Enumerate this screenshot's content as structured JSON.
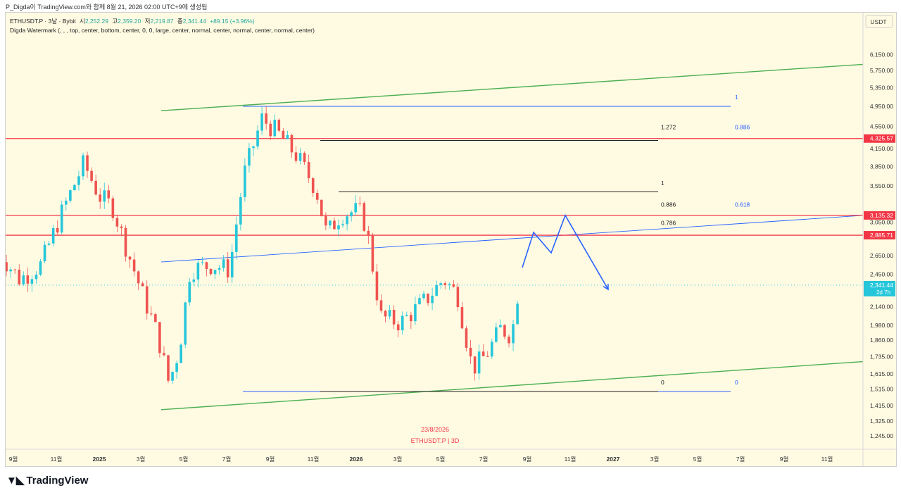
{
  "caption": "P_Digda이 TradingView.com와 함께 8월 21, 2026 02:00 UTC+9에 생성됨",
  "legend": {
    "symbol": "ETHUSDT.P · 3날 · Bybit",
    "open_label": "시",
    "open": "2,252.29",
    "high_label": "고",
    "high": "2,359.20",
    "low_label": "저",
    "low": "2,219.87",
    "close_label": "종",
    "close": "2,341.44",
    "change": "+89.15 (+3.96%)",
    "indicator": "Digda Watermark (, , , top, center, bottom, center, 0, 0, large, center, normal, center, normal, center, normal, center)"
  },
  "axis": {
    "currency": "USDT",
    "price_ticks": [
      "6,150.00",
      "5,750.00",
      "5,350.00",
      "4,950.00",
      "4,550.00",
      "4,150.00",
      "3,850.00",
      "3,550.00",
      "3,050.00",
      "2,650.00",
      "2,450.00",
      "2,140.00",
      "1,980.00",
      "1,860.00",
      "1,735.00",
      "1,615.00",
      "1,515.00",
      "1,415.00",
      "1,325.00",
      "1,245.00"
    ],
    "time_ticks": [
      "9월",
      "11월",
      "2025",
      "3월",
      "5월",
      "7월",
      "9월",
      "11월",
      "2026",
      "3월",
      "5월",
      "7월",
      "9월",
      "11월",
      "2027",
      "3월",
      "5월",
      "7월",
      "9월",
      "11월"
    ]
  },
  "price_badges": [
    {
      "value": "4,325.57",
      "color": "#f23645"
    },
    {
      "value": "3,135.32",
      "color": "#f23645"
    },
    {
      "value": "2,885.71",
      "color": "#f23645"
    },
    {
      "value": "2,341.44",
      "sub": "2d 7h",
      "color": "#26c6da"
    }
  ],
  "fib_labels": {
    "black": [
      {
        "ratio": "1.272",
        "price": 4325.57
      },
      {
        "ratio": "1",
        "price": 3460
      },
      {
        "ratio": "0.886",
        "price": 3180
      },
      {
        "ratio": "0.786",
        "price": 2950
      },
      {
        "ratio": "0",
        "price": 1500
      }
    ],
    "blue": [
      {
        "ratio": "1",
        "price": 4950
      },
      {
        "ratio": "0.886",
        "price": 4325.57
      },
      {
        "ratio": "0.618",
        "price": 3180
      },
      {
        "ratio": "0",
        "price": 1500
      }
    ]
  },
  "watermark": {
    "date": "23/8/2026",
    "symbol": "ETHUSDT.P | 3D"
  },
  "colors": {
    "background": "#fffbe3",
    "up": "#26c6da",
    "down": "#ef5350",
    "channel": "#4caf50",
    "resistance": "#f23645",
    "fib_blue": "#2962ff",
    "projection": "#2962ff"
  },
  "chart_data": {
    "type": "candlestick",
    "symbol": "ETHUSDT.P",
    "interval": "3D",
    "exchange": "Bybit",
    "ylim": [
      1200,
      6400
    ],
    "y_scale": "log",
    "last_price": 2341.44,
    "horizontal_levels": [
      4325.57,
      3135.32,
      2885.71
    ],
    "channel_lines": [
      {
        "from": [
          "2025-04",
          1390
        ],
        "to": [
          "2027-11",
          1700
        ]
      },
      {
        "from": [
          "2025-04",
          4860
        ],
        "to": [
          "2027-11",
          5900
        ]
      }
    ],
    "trend_line": {
      "from": [
        "2025-04",
        2580
      ],
      "to": [
        "2027-11",
        3135
      ]
    },
    "path_series": [
      {
        "date": "2024-08-10",
        "price": 2700
      },
      {
        "date": "2024-09-10",
        "price": 2400
      },
      {
        "date": "2024-10-10",
        "price": 2550
      },
      {
        "date": "2024-11-10",
        "price": 3200
      },
      {
        "date": "2024-12-10",
        "price": 3900
      },
      {
        "date": "2025-01-01",
        "price": 3400
      },
      {
        "date": "2025-01-20",
        "price": 3250
      },
      {
        "date": "2025-02-10",
        "price": 2700
      },
      {
        "date": "2025-03-01",
        "price": 2300
      },
      {
        "date": "2025-03-25",
        "price": 1900
      },
      {
        "date": "2025-04-10",
        "price": 1550
      },
      {
        "date": "2025-04-25",
        "price": 1800
      },
      {
        "date": "2025-05-10",
        "price": 2500
      },
      {
        "date": "2025-06-10",
        "price": 2550
      },
      {
        "date": "2025-07-05",
        "price": 2500
      },
      {
        "date": "2025-07-25",
        "price": 3700
      },
      {
        "date": "2025-08-20",
        "price": 4700
      },
      {
        "date": "2025-09-10",
        "price": 4450
      },
      {
        "date": "2025-10-10",
        "price": 4000
      },
      {
        "date": "2025-11-05",
        "price": 3500
      },
      {
        "date": "2025-11-20",
        "price": 2900
      },
      {
        "date": "2025-12-10",
        "price": 3150
      },
      {
        "date": "2026-01-05",
        "price": 3200
      },
      {
        "date": "2026-01-15",
        "price": 3000
      },
      {
        "date": "2026-02-05",
        "price": 2050
      },
      {
        "date": "2026-03-05",
        "price": 2000
      },
      {
        "date": "2026-04-10",
        "price": 2200
      },
      {
        "date": "2026-05-05",
        "price": 2400
      },
      {
        "date": "2026-05-25",
        "price": 2250
      },
      {
        "date": "2026-06-15",
        "price": 1650
      },
      {
        "date": "2026-07-05",
        "price": 1750
      },
      {
        "date": "2026-07-25",
        "price": 1950
      },
      {
        "date": "2026-08-10",
        "price": 1900
      },
      {
        "date": "2026-08-20",
        "price": 2341
      }
    ],
    "projection": [
      {
        "date": "2026-08-25",
        "price": 2520
      },
      {
        "date": "2026-09-10",
        "price": 2920
      },
      {
        "date": "2026-10-05",
        "price": 2680
      },
      {
        "date": "2026-10-25",
        "price": 3135
      },
      {
        "date": "2026-12-25",
        "price": 2300
      }
    ]
  }
}
